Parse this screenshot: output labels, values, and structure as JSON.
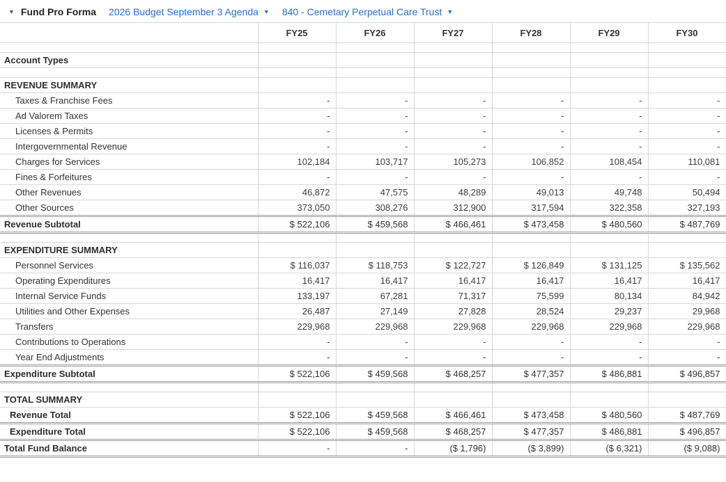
{
  "header": {
    "collapse_caret": "▼",
    "title": "Fund Pro Forma",
    "budget_dropdown": {
      "label": "2026 Budget September 3 Agenda",
      "caret": "▼"
    },
    "fund_dropdown": {
      "label": "840 - Cemetary Perpetual Care Trust",
      "caret": "▼"
    }
  },
  "table": {
    "columns": [
      "FY25",
      "FY26",
      "FY27",
      "FY28",
      "FY29",
      "FY30"
    ],
    "rows": [
      {
        "type": "spacer"
      },
      {
        "type": "labelbold",
        "label": "Account Types",
        "values": [
          "",
          "",
          "",
          "",
          "",
          ""
        ]
      },
      {
        "type": "spacer"
      },
      {
        "type": "section",
        "label": "REVENUE SUMMARY",
        "values": [
          "",
          "",
          "",
          "",
          "",
          ""
        ]
      },
      {
        "type": "detail",
        "label": "Taxes & Franchise Fees",
        "values": [
          "-",
          "-",
          "-",
          "-",
          "-",
          "-"
        ]
      },
      {
        "type": "detail",
        "label": "Ad Valorem Taxes",
        "values": [
          "-",
          "-",
          "-",
          "-",
          "-",
          "-"
        ]
      },
      {
        "type": "detail",
        "label": "Licenses & Permits",
        "values": [
          "-",
          "-",
          "-",
          "-",
          "-",
          "-"
        ]
      },
      {
        "type": "detail",
        "label": "Intergovernmental Revenue",
        "values": [
          "-",
          "-",
          "-",
          "-",
          "-",
          "-"
        ]
      },
      {
        "type": "detail",
        "label": "Charges for Services",
        "values": [
          "102,184",
          "103,717",
          "105,273",
          "106,852",
          "108,454",
          "110,081"
        ]
      },
      {
        "type": "detail",
        "label": "Fines & Forfeitures",
        "values": [
          "-",
          "-",
          "-",
          "-",
          "-",
          "-"
        ]
      },
      {
        "type": "detail",
        "label": "Other Revenues",
        "values": [
          "46,872",
          "47,575",
          "48,289",
          "49,013",
          "49,748",
          "50,494"
        ]
      },
      {
        "type": "detail",
        "label": "Other Sources",
        "values": [
          "373,050",
          "308,276",
          "312,900",
          "317,594",
          "322,358",
          "327,193"
        ]
      },
      {
        "type": "subtotal",
        "label": "Revenue Subtotal",
        "values": [
          "$ 522,106",
          "$ 459,568",
          "$ 466,461",
          "$ 473,458",
          "$ 480,560",
          "$ 487,769"
        ]
      },
      {
        "type": "spacer"
      },
      {
        "type": "section",
        "label": "EXPENDITURE SUMMARY",
        "values": [
          "",
          "",
          "",
          "",
          "",
          ""
        ]
      },
      {
        "type": "detail",
        "label": "Personnel Services",
        "values": [
          "$ 116,037",
          "$ 118,753",
          "$ 122,727",
          "$ 126,849",
          "$ 131,125",
          "$ 135,562"
        ]
      },
      {
        "type": "detail",
        "label": "Operating Expenditures",
        "values": [
          "16,417",
          "16,417",
          "16,417",
          "16,417",
          "16,417",
          "16,417"
        ]
      },
      {
        "type": "detail",
        "label": "Internal Service Funds",
        "values": [
          "133,197",
          "67,281",
          "71,317",
          "75,599",
          "80,134",
          "84,942"
        ]
      },
      {
        "type": "detail",
        "label": "Utilities and Other Expenses",
        "values": [
          "26,487",
          "27,149",
          "27,828",
          "28,524",
          "29,237",
          "29,968"
        ]
      },
      {
        "type": "detail",
        "label": "Transfers",
        "values": [
          "229,968",
          "229,968",
          "229,968",
          "229,968",
          "229,968",
          "229,968"
        ]
      },
      {
        "type": "detail",
        "label": "Contributions to Operations",
        "values": [
          "-",
          "-",
          "-",
          "-",
          "-",
          "-"
        ]
      },
      {
        "type": "detail",
        "label": "Year End Adjustments",
        "values": [
          "-",
          "-",
          "-",
          "-",
          "-",
          "-"
        ]
      },
      {
        "type": "subtotal",
        "label": "Expenditure Subtotal",
        "values": [
          "$ 522,106",
          "$ 459,568",
          "$ 468,257",
          "$ 477,357",
          "$ 486,881",
          "$ 496,857"
        ]
      },
      {
        "type": "spacer"
      },
      {
        "type": "section",
        "label": "TOTAL SUMMARY",
        "values": [
          "",
          "",
          "",
          "",
          "",
          ""
        ]
      },
      {
        "type": "total",
        "label": "Revenue Total",
        "values": [
          "$ 522,106",
          "$ 459,568",
          "$ 466,461",
          "$ 473,458",
          "$ 480,560",
          "$ 487,769"
        ]
      },
      {
        "type": "total",
        "label": "Expenditure Total",
        "values": [
          "$ 522,106",
          "$ 459,568",
          "$ 468,257",
          "$ 477,357",
          "$ 486,881",
          "$ 496,857"
        ]
      },
      {
        "type": "grandtotal",
        "label": "Total Fund Balance",
        "values": [
          "-",
          "-",
          "($ 1,796)",
          "($ 3,899)",
          "($ 6,321)",
          "($ 9,088)"
        ]
      }
    ]
  }
}
